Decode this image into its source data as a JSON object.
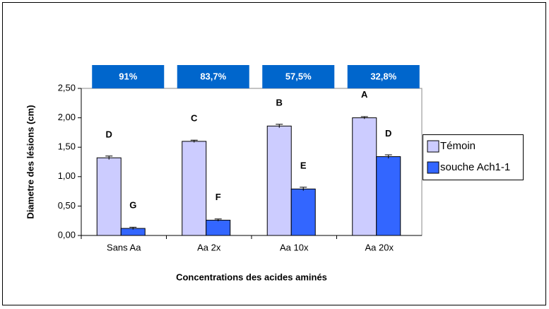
{
  "chart_data": {
    "type": "bar",
    "y_label": "Diametre des lésions (cm)",
    "x_label": "Concentrations des acides aminés",
    "categories": [
      "Sans Aa",
      "Aa 2x",
      "Aa  10x",
      "Aa 20x"
    ],
    "series": [
      {
        "name": "Témoin",
        "color": "#ccccff",
        "values": [
          1.32,
          1.6,
          1.86,
          2.0
        ],
        "errors": [
          0.03,
          0.02,
          0.03,
          0.02
        ],
        "letters": [
          "D",
          "C",
          "B",
          "A"
        ]
      },
      {
        "name": "souche Ach1-1",
        "color": "#3366ff",
        "values": [
          0.12,
          0.26,
          0.79,
          1.34
        ],
        "errors": [
          0.02,
          0.02,
          0.03,
          0.03
        ],
        "letters": [
          "G",
          "F",
          "E",
          "D"
        ]
      }
    ],
    "percent_labels": [
      "91%",
      "83,7%",
      "57,5%",
      "32,8%"
    ],
    "percent_color": "#0066cc",
    "ylim": [
      0,
      2.5
    ],
    "yticks": [
      {
        "value": 0,
        "label": "0,00"
      },
      {
        "value": 0.5,
        "label": "0,50"
      },
      {
        "value": 1,
        "label": "1,00"
      },
      {
        "value": 1.5,
        "label": "1,50"
      },
      {
        "value": 2,
        "label": "2,00"
      },
      {
        "value": 2.5,
        "label": "2,50"
      }
    ],
    "grid": false,
    "legend": "right"
  }
}
